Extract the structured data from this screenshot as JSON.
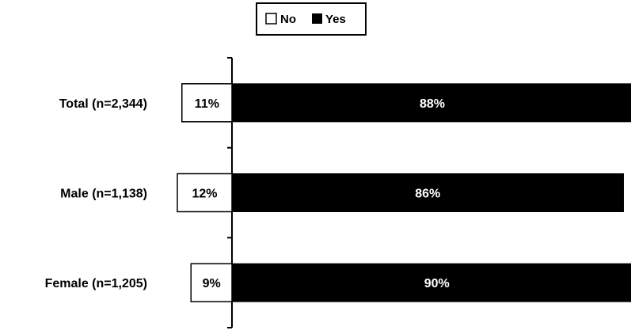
{
  "chart_data": {
    "type": "bar",
    "orientation": "horizontal",
    "stacked": "diverging",
    "categories": [
      "Total (n=2,344)",
      "Male (n=1,138)",
      "Female (n=1,205)"
    ],
    "series": [
      {
        "name": "No",
        "values": [
          11,
          12,
          9
        ],
        "labels": [
          "11%",
          "12%",
          "9%"
        ],
        "color": "#ffffff"
      },
      {
        "name": "Yes",
        "values": [
          88,
          86,
          90
        ],
        "labels": [
          "88%",
          "86%",
          "90%"
        ],
        "color": "#000000"
      }
    ],
    "legend": {
      "position": "top-center",
      "items": [
        "No",
        "Yes"
      ]
    },
    "xlabel": "",
    "ylabel": "",
    "grid": false
  }
}
